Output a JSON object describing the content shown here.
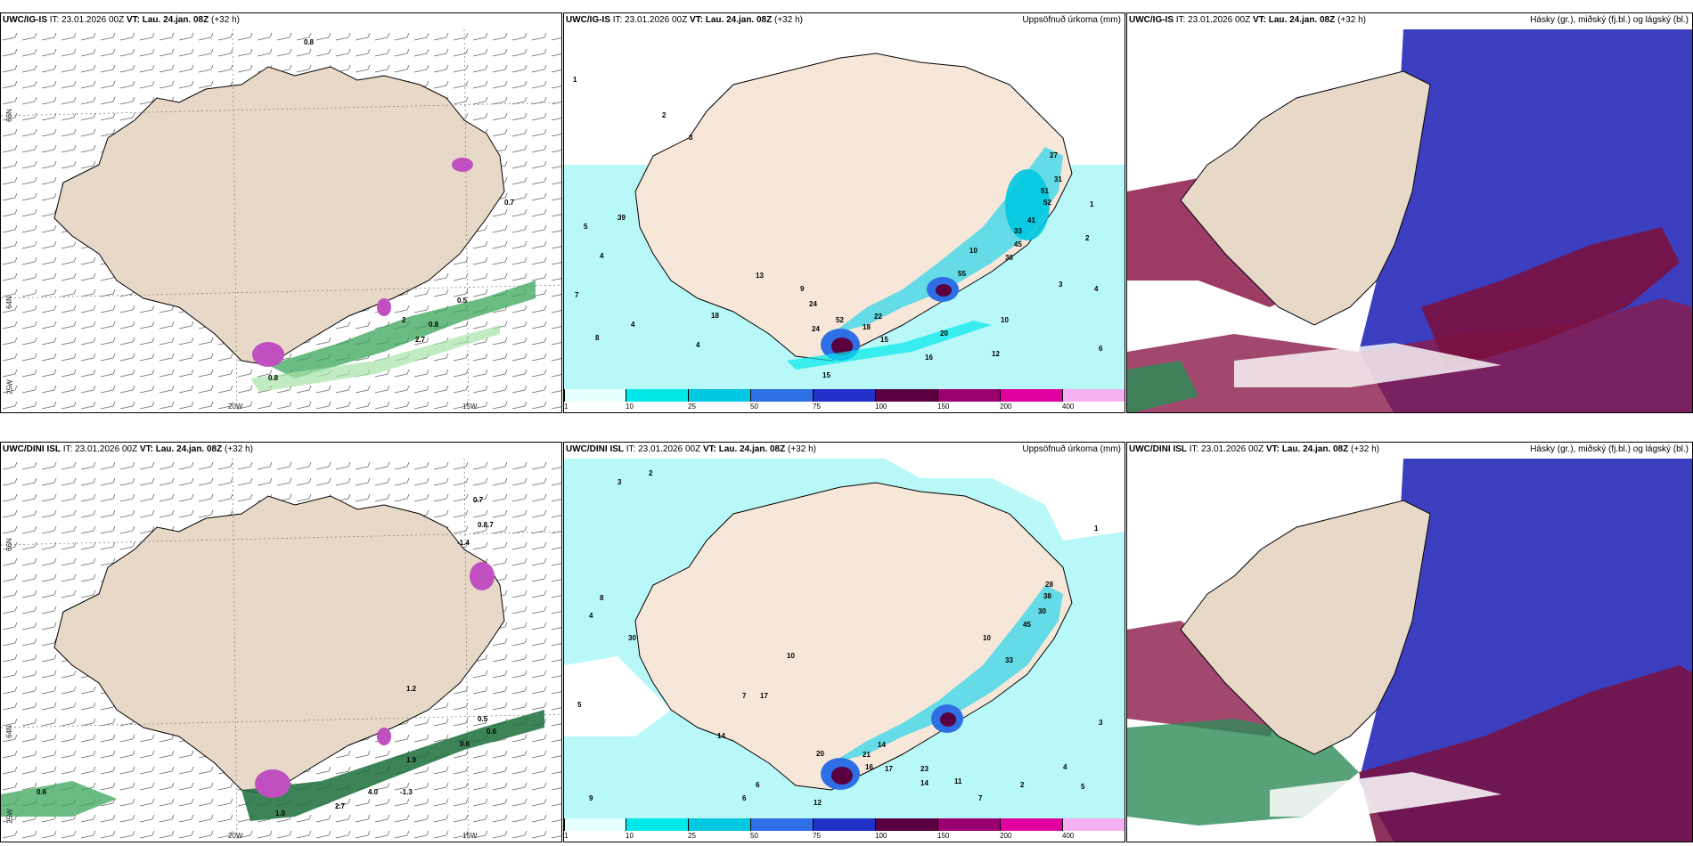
{
  "panels": [
    {
      "id": "p1",
      "model": "UWC/IG-IS",
      "it_label": "IT:",
      "it_value": "23.01.2026 00Z",
      "vt_label": "VT:",
      "vt_value": "Lau. 24.jan. 08Z",
      "lead": "(+32 h)",
      "right_title": "",
      "lat_labels": [
        "66N",
        "64N"
      ],
      "lon_labels": [
        "20W",
        "15W",
        "25W"
      ],
      "values": [
        "0.8",
        "0.7",
        "0.5",
        "2",
        "0.8",
        "2.7",
        "0.8"
      ]
    },
    {
      "id": "p2",
      "model": "UWC/IG-IS",
      "it_label": "IT:",
      "it_value": "23.01.2026 00Z",
      "vt_label": "VT:",
      "vt_value": "Lau. 24.jan. 08Z",
      "lead": "(+32 h)",
      "right_title": "Uppsöfnuð úrkoma (mm)",
      "values": [
        "1",
        "2",
        "3",
        "4",
        "5",
        "9",
        "13",
        "18",
        "24",
        "52",
        "10",
        "22",
        "18",
        "15",
        "16",
        "12",
        "15",
        "20",
        "27",
        "51",
        "52",
        "41",
        "31",
        "33",
        "36",
        "10",
        "6",
        "3",
        "4",
        "2",
        "1",
        "39",
        "55",
        "45",
        "24",
        "8",
        "7",
        "4",
        "4"
      ]
    },
    {
      "id": "p3",
      "model": "UWC/IG-IS",
      "it_label": "IT:",
      "it_value": "23.01.2026 00Z",
      "vt_label": "VT:",
      "vt_value": "Lau. 24.jan. 08Z",
      "lead": "(+32 h)",
      "right_title": "Hásky (gr.), miðský (fj.bl.) og lágský (bl.)"
    },
    {
      "id": "p4",
      "model": "UWC/DINI ISL",
      "it_label": "IT:",
      "it_value": "23.01.2026 00Z",
      "vt_label": "VT:",
      "vt_value": "Lau. 24.jan. 08Z",
      "lead": "(+32 h)",
      "right_title": "",
      "lat_labels": [
        "66N",
        "64N"
      ],
      "lon_labels": [
        "20W",
        "15W",
        "25W"
      ],
      "values": [
        "0.7",
        "0.8.7",
        "-1.4",
        "1.2",
        "0.5",
        "0.6",
        "0.6",
        "0.6",
        "4.0",
        "-1.3",
        "1.0",
        "2.7",
        "1.9"
      ]
    },
    {
      "id": "p5",
      "model": "UWC/DINI ISL",
      "it_label": "IT:",
      "it_value": "23.01.2026 00Z",
      "vt_label": "VT:",
      "vt_value": "Lau. 24.jan. 08Z",
      "lead": "(+32 h)",
      "right_title": "Uppsöfnuð úrkoma (mm)",
      "values": [
        "3",
        "2",
        "4",
        "8",
        "9",
        "5",
        "30",
        "14",
        "10",
        "17",
        "7",
        "6",
        "12",
        "20",
        "21",
        "14",
        "16",
        "17",
        "23",
        "14",
        "11",
        "7",
        "10",
        "28",
        "38",
        "45",
        "33",
        "30",
        "3",
        "1",
        "2",
        "4",
        "5",
        "6"
      ]
    },
    {
      "id": "p6",
      "model": "UWC/DINI ISL",
      "it_label": "IT:",
      "it_value": "23.01.2026 00Z",
      "vt_label": "VT:",
      "vt_value": "Lau. 24.jan. 08Z",
      "lead": "(+32 h)",
      "right_title": "Hásky (gr.), miðský (fj.bl.) og lágský (bl.)"
    }
  ],
  "precip_legend": {
    "ticks": [
      "1",
      "10",
      "25",
      "50",
      "75",
      "100",
      "150",
      "200",
      "400"
    ],
    "colors": [
      "#e6ffff",
      "#00e8e8",
      "#00c8e0",
      "#2f6fe6",
      "#2030c8",
      "#5a0040",
      "#9a0070",
      "#e000a0",
      "#f4b0f0"
    ]
  },
  "colors": {
    "land": "#e8d8c8",
    "land_beige": "#f6e7d9",
    "precip_light": "#b8f8f8",
    "precip_mid": "#40d8e8",
    "cloud_high": "#2e8b57",
    "cloud_mid": "#8b1a4a",
    "cloud_low": "#3b3fbf",
    "cloud_sea_white": "#ffffff"
  }
}
